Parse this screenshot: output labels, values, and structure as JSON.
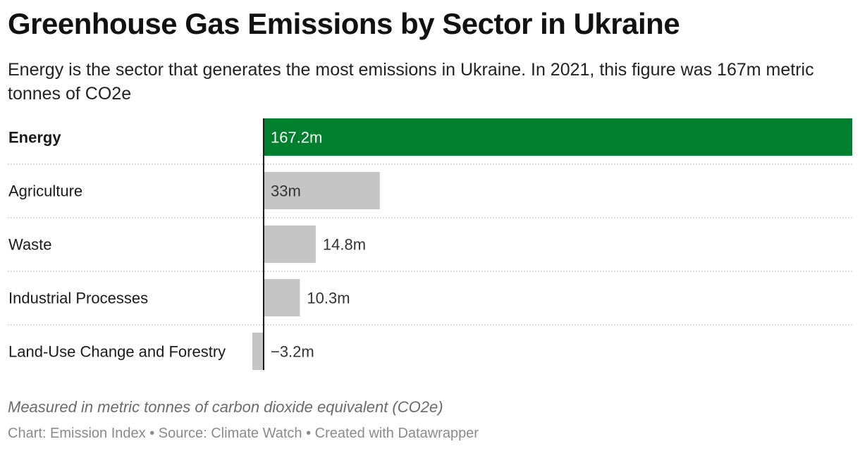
{
  "header": {
    "title": "Greenhouse Gas Emissions by Sector in Ukraine",
    "subtitle": "Energy is the sector that generates the most emissions in Ukraine. In 2021, this figure was 167m metric tonnes of CO2e"
  },
  "chart_data": {
    "type": "bar",
    "orientation": "horizontal",
    "categories": [
      "Energy",
      "Agriculture",
      "Waste",
      "Industrial Processes",
      "Land-Use Change and Forestry"
    ],
    "values": [
      167.2,
      33,
      14.8,
      10.3,
      -3.2
    ],
    "value_labels": [
      "167.2m",
      "33m",
      "14.8m",
      "10.3m",
      "−3.2m"
    ],
    "highlight_index": 0,
    "colors": {
      "highlight": "#00802f",
      "default": "#c5c5c5",
      "zero_line": "#1a1a1a",
      "separator": "#cccccc"
    },
    "xlim": [
      -3.2,
      167.2
    ],
    "grid": false,
    "legend": "none"
  },
  "footer": {
    "notes": "Measured in metric tonnes of carbon dioxide equivalent (CO2e)",
    "byline": "Chart: Emission Index • Source: Climate Watch • Created with Datawrapper"
  }
}
